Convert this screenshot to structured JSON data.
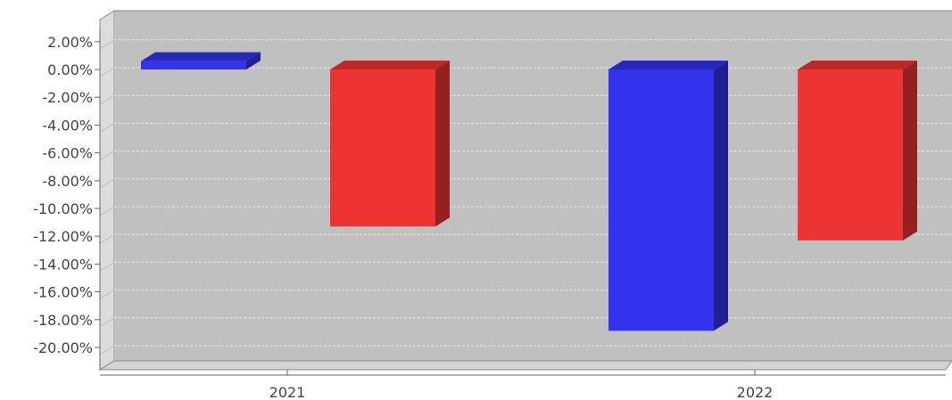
{
  "chart_data": {
    "type": "bar",
    "style": "3d",
    "categories": [
      "2021",
      "2022"
    ],
    "series": [
      {
        "values": [
          0.6,
          -18.8
        ],
        "color": "#3333ee"
      },
      {
        "values": [
          -11.3,
          -12.3
        ],
        "color": "#ee3333"
      }
    ],
    "ylim": [
      -20.5,
      4.0
    ],
    "yticks": [
      2,
      0,
      -2,
      -4,
      -6,
      -8,
      -10,
      -12,
      -14,
      -16,
      -18,
      -20
    ],
    "ytick_labels": [
      "2.00%",
      "0.00%",
      "-2.00%",
      "-4.00%",
      "-6.00%",
      "-8.00%",
      "-10.00%",
      "-12.00%",
      "-14.00%",
      "-16.00%",
      "-18.00%",
      "-20.00%"
    ],
    "grid": true,
    "legend": false,
    "colors": {
      "plot_background": "#c0c0c0",
      "left_wall": "#dcdcdc",
      "floor": "#d4d4d4",
      "gridline": "#e8e8e8"
    }
  }
}
